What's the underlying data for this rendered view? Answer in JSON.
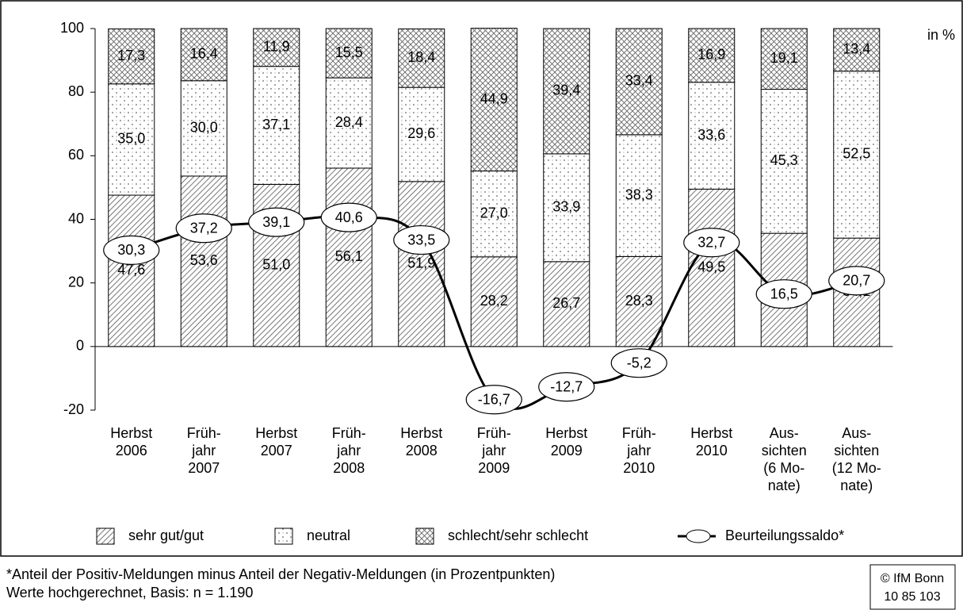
{
  "chart_data": {
    "type": "stacked-bar-line",
    "axis_label": "in %",
    "categories": [
      "Herbst\n2006",
      "Früh-\njahr\n2007",
      "Herbst\n2007",
      "Früh-\njahr\n2008",
      "Herbst\n2008",
      "Früh-\njahr\n2009",
      "Herbst\n2009",
      "Früh-\njahr\n2010",
      "Herbst\n2010",
      "Aus-\nsichten\n(6 Mo-\nnate)",
      "Aus-\nsichten\n(12 Mo-\nnate)"
    ],
    "series": [
      {
        "name": "sehr gut/gut",
        "pattern": "diag",
        "values": [
          47.6,
          53.6,
          51.0,
          56.1,
          51.9,
          28.2,
          26.7,
          28.3,
          49.5,
          35.6,
          34.1
        ],
        "value_labels": [
          "47,6",
          "53,6",
          "51,0",
          "56,1",
          "51,9",
          "28,2",
          "26,7",
          "28,3",
          "49,5",
          "35,6",
          "34,1"
        ]
      },
      {
        "name": "neutral",
        "pattern": "dots",
        "values": [
          35.0,
          30.0,
          37.1,
          28.4,
          29.6,
          27.0,
          33.9,
          38.3,
          33.6,
          45.3,
          52.5
        ],
        "value_labels": [
          "35,0",
          "30,0",
          "37,1",
          "28,4",
          "29,6",
          "27,0",
          "33,9",
          "38,3",
          "33,6",
          "45,3",
          "52,5"
        ]
      },
      {
        "name": "schlecht/sehr schlecht",
        "pattern": "cross",
        "values": [
          17.3,
          16.4,
          11.9,
          15.5,
          18.4,
          44.9,
          39.4,
          33.4,
          16.9,
          19.1,
          13.4
        ],
        "value_labels": [
          "17,3",
          "16,4",
          "11,9",
          "15,5",
          "18,4",
          "44,9",
          "39,4",
          "33,4",
          "16,9",
          "19,1",
          "13,4"
        ]
      },
      {
        "name": "Beurteilungssaldo*",
        "type": "line",
        "color": "#000000",
        "values": [
          30.3,
          37.2,
          39.1,
          40.6,
          33.5,
          -16.7,
          -12.7,
          -5.2,
          32.7,
          16.5,
          20.7
        ],
        "value_labels": [
          "30,3",
          "37,2",
          "39,1",
          "40,6",
          "33,5",
          "-16,7",
          "-12,7",
          "-5,2",
          "32,7",
          "16,5",
          "20,7"
        ]
      }
    ],
    "ylim": [
      -20,
      100
    ],
    "yticks": [
      -20,
      0,
      20,
      40,
      60,
      80,
      100
    ],
    "footnote": [
      "*Anteil der Positiv-Meldungen minus Anteil der Negativ-Meldungen (in Prozentpunkten)",
      "Werte hochgerechnet, Basis: n = 1.190"
    ],
    "source": [
      "© IfM Bonn",
      "10  85  103"
    ]
  }
}
